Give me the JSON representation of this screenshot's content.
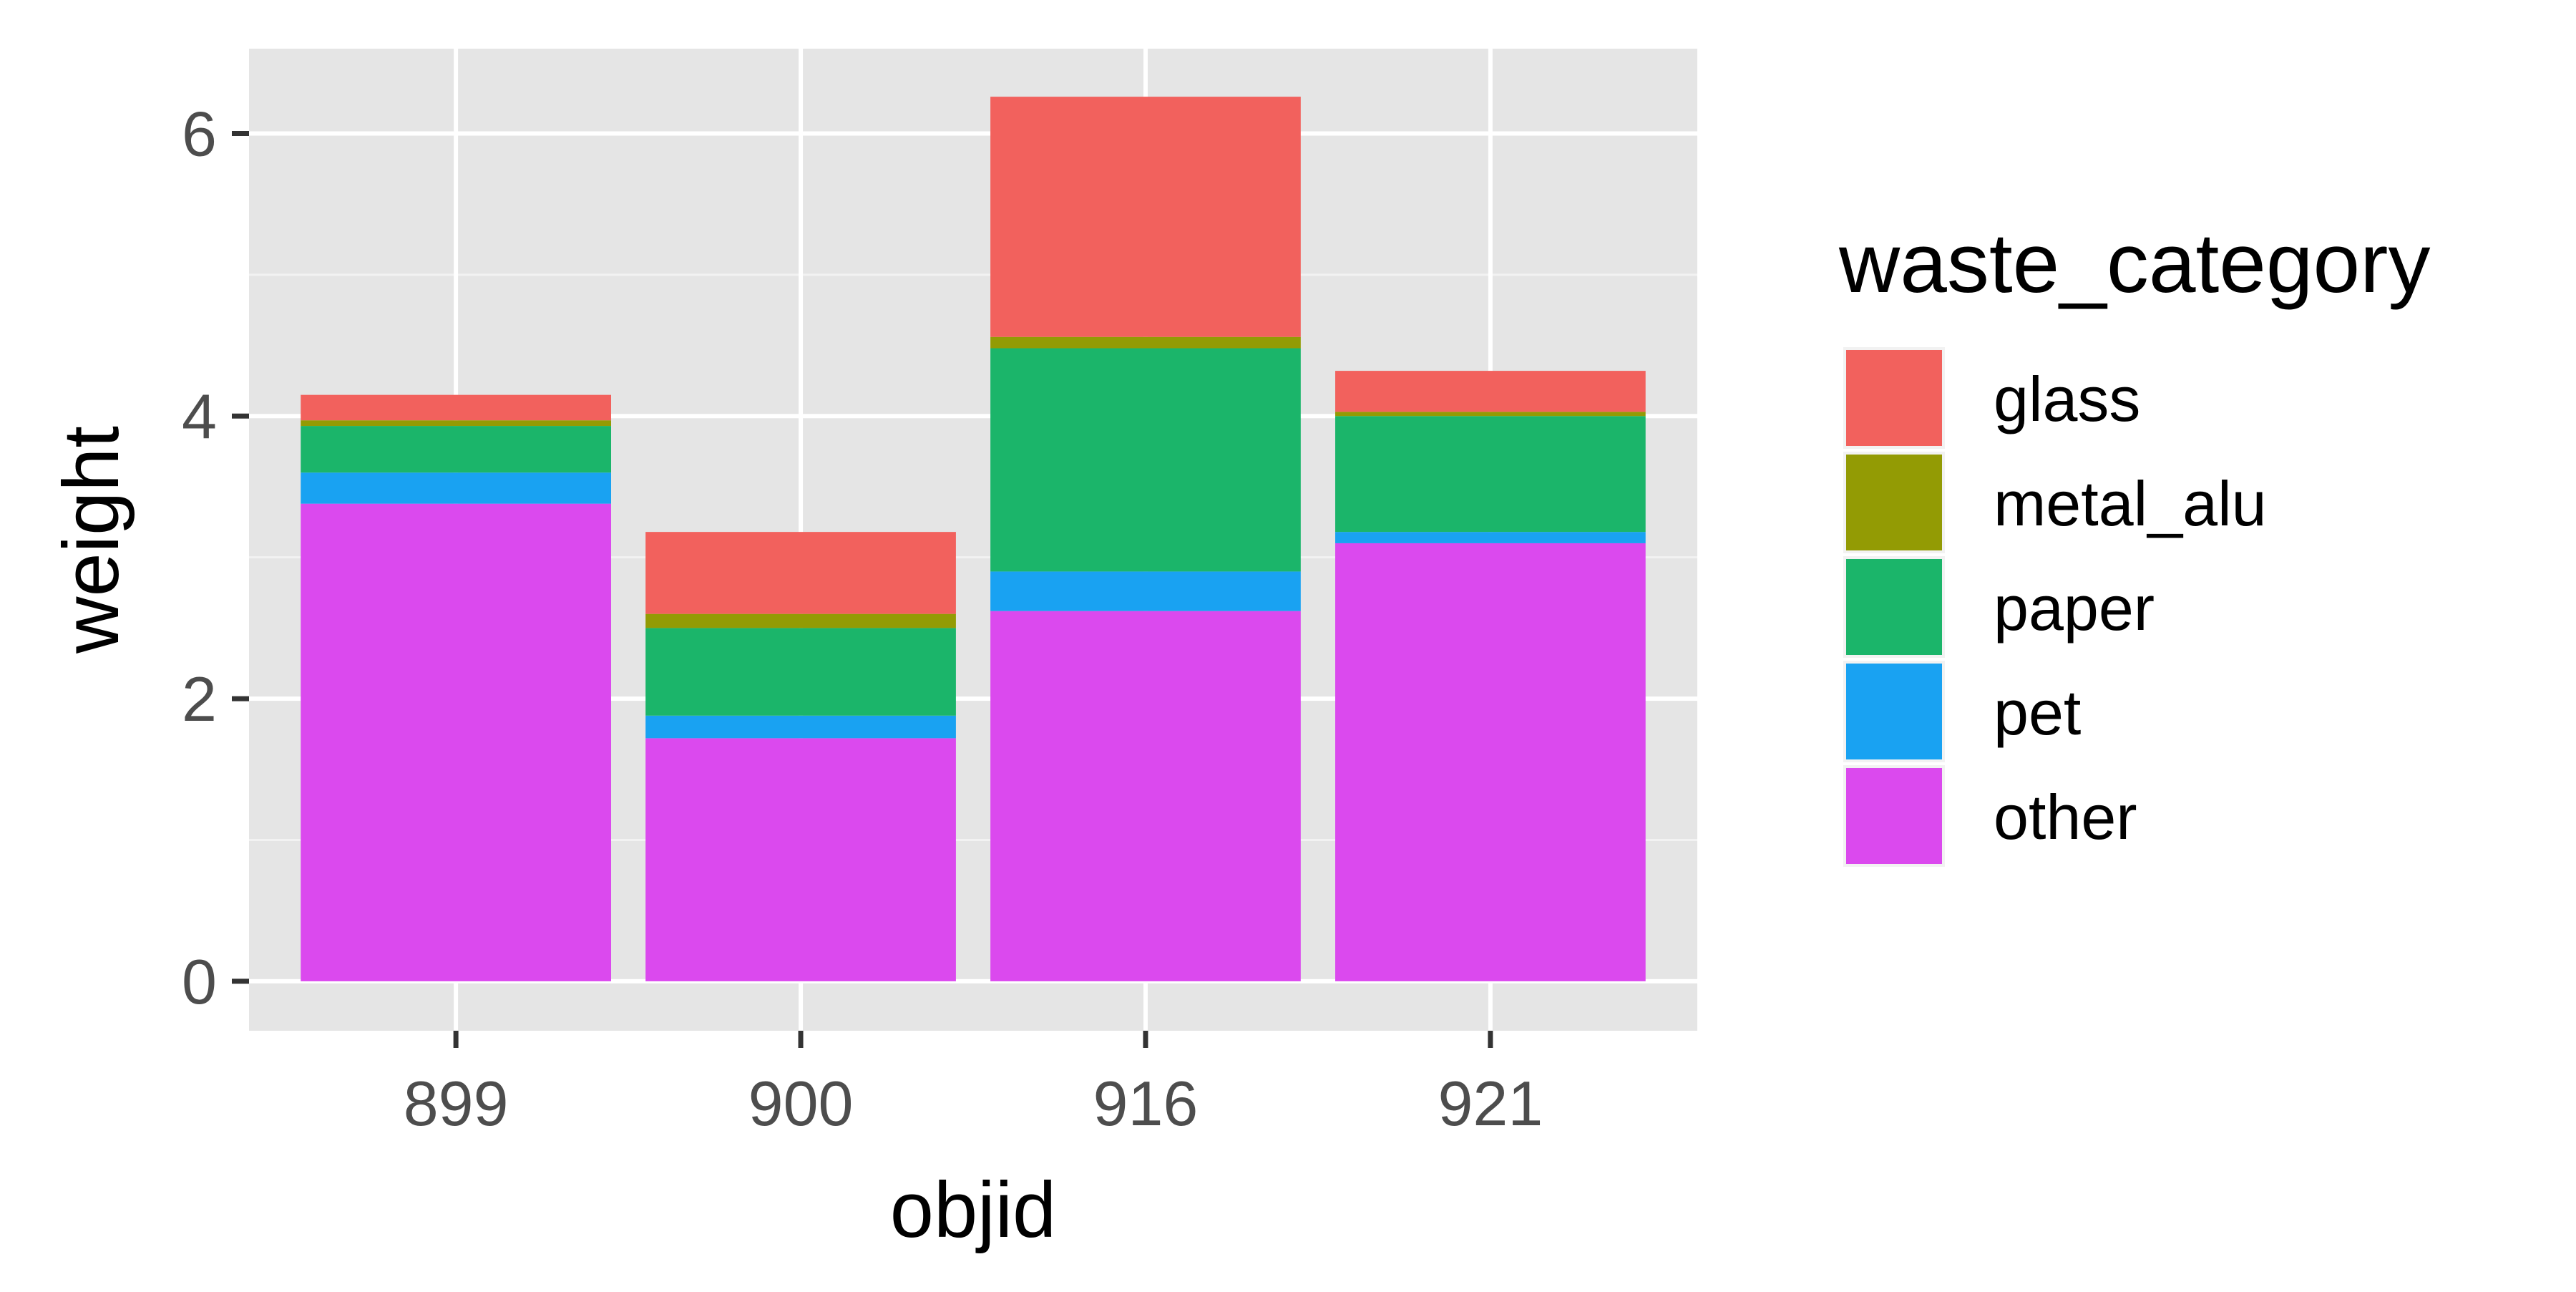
{
  "chart_data": {
    "type": "bar",
    "stacked": true,
    "title": "",
    "xlabel": "objid",
    "ylabel": "weight",
    "categories": [
      "899",
      "900",
      "916",
      "921"
    ],
    "ylim": [
      -0.35,
      6.6
    ],
    "yticks": [
      0,
      2,
      4,
      6
    ],
    "grid": true,
    "legend": {
      "title": "waste_category",
      "position": "right"
    },
    "series": [
      {
        "name": "other",
        "color": "#DB49EE",
        "values": [
          3.38,
          1.72,
          2.62,
          3.1
        ]
      },
      {
        "name": "pet",
        "color": "#19A2F2",
        "values": [
          0.22,
          0.16,
          0.28,
          0.08
        ]
      },
      {
        "name": "paper",
        "color": "#1BB56A",
        "values": [
          0.33,
          0.62,
          1.58,
          0.82
        ]
      },
      {
        "name": "metal_alu",
        "color": "#939B04",
        "values": [
          0.04,
          0.1,
          0.08,
          0.03
        ]
      },
      {
        "name": "glass",
        "color": "#F2615D",
        "values": [
          0.18,
          0.58,
          1.7,
          0.29
        ]
      }
    ],
    "legend_order": [
      "glass",
      "metal_alu",
      "paper",
      "pet",
      "other"
    ]
  }
}
